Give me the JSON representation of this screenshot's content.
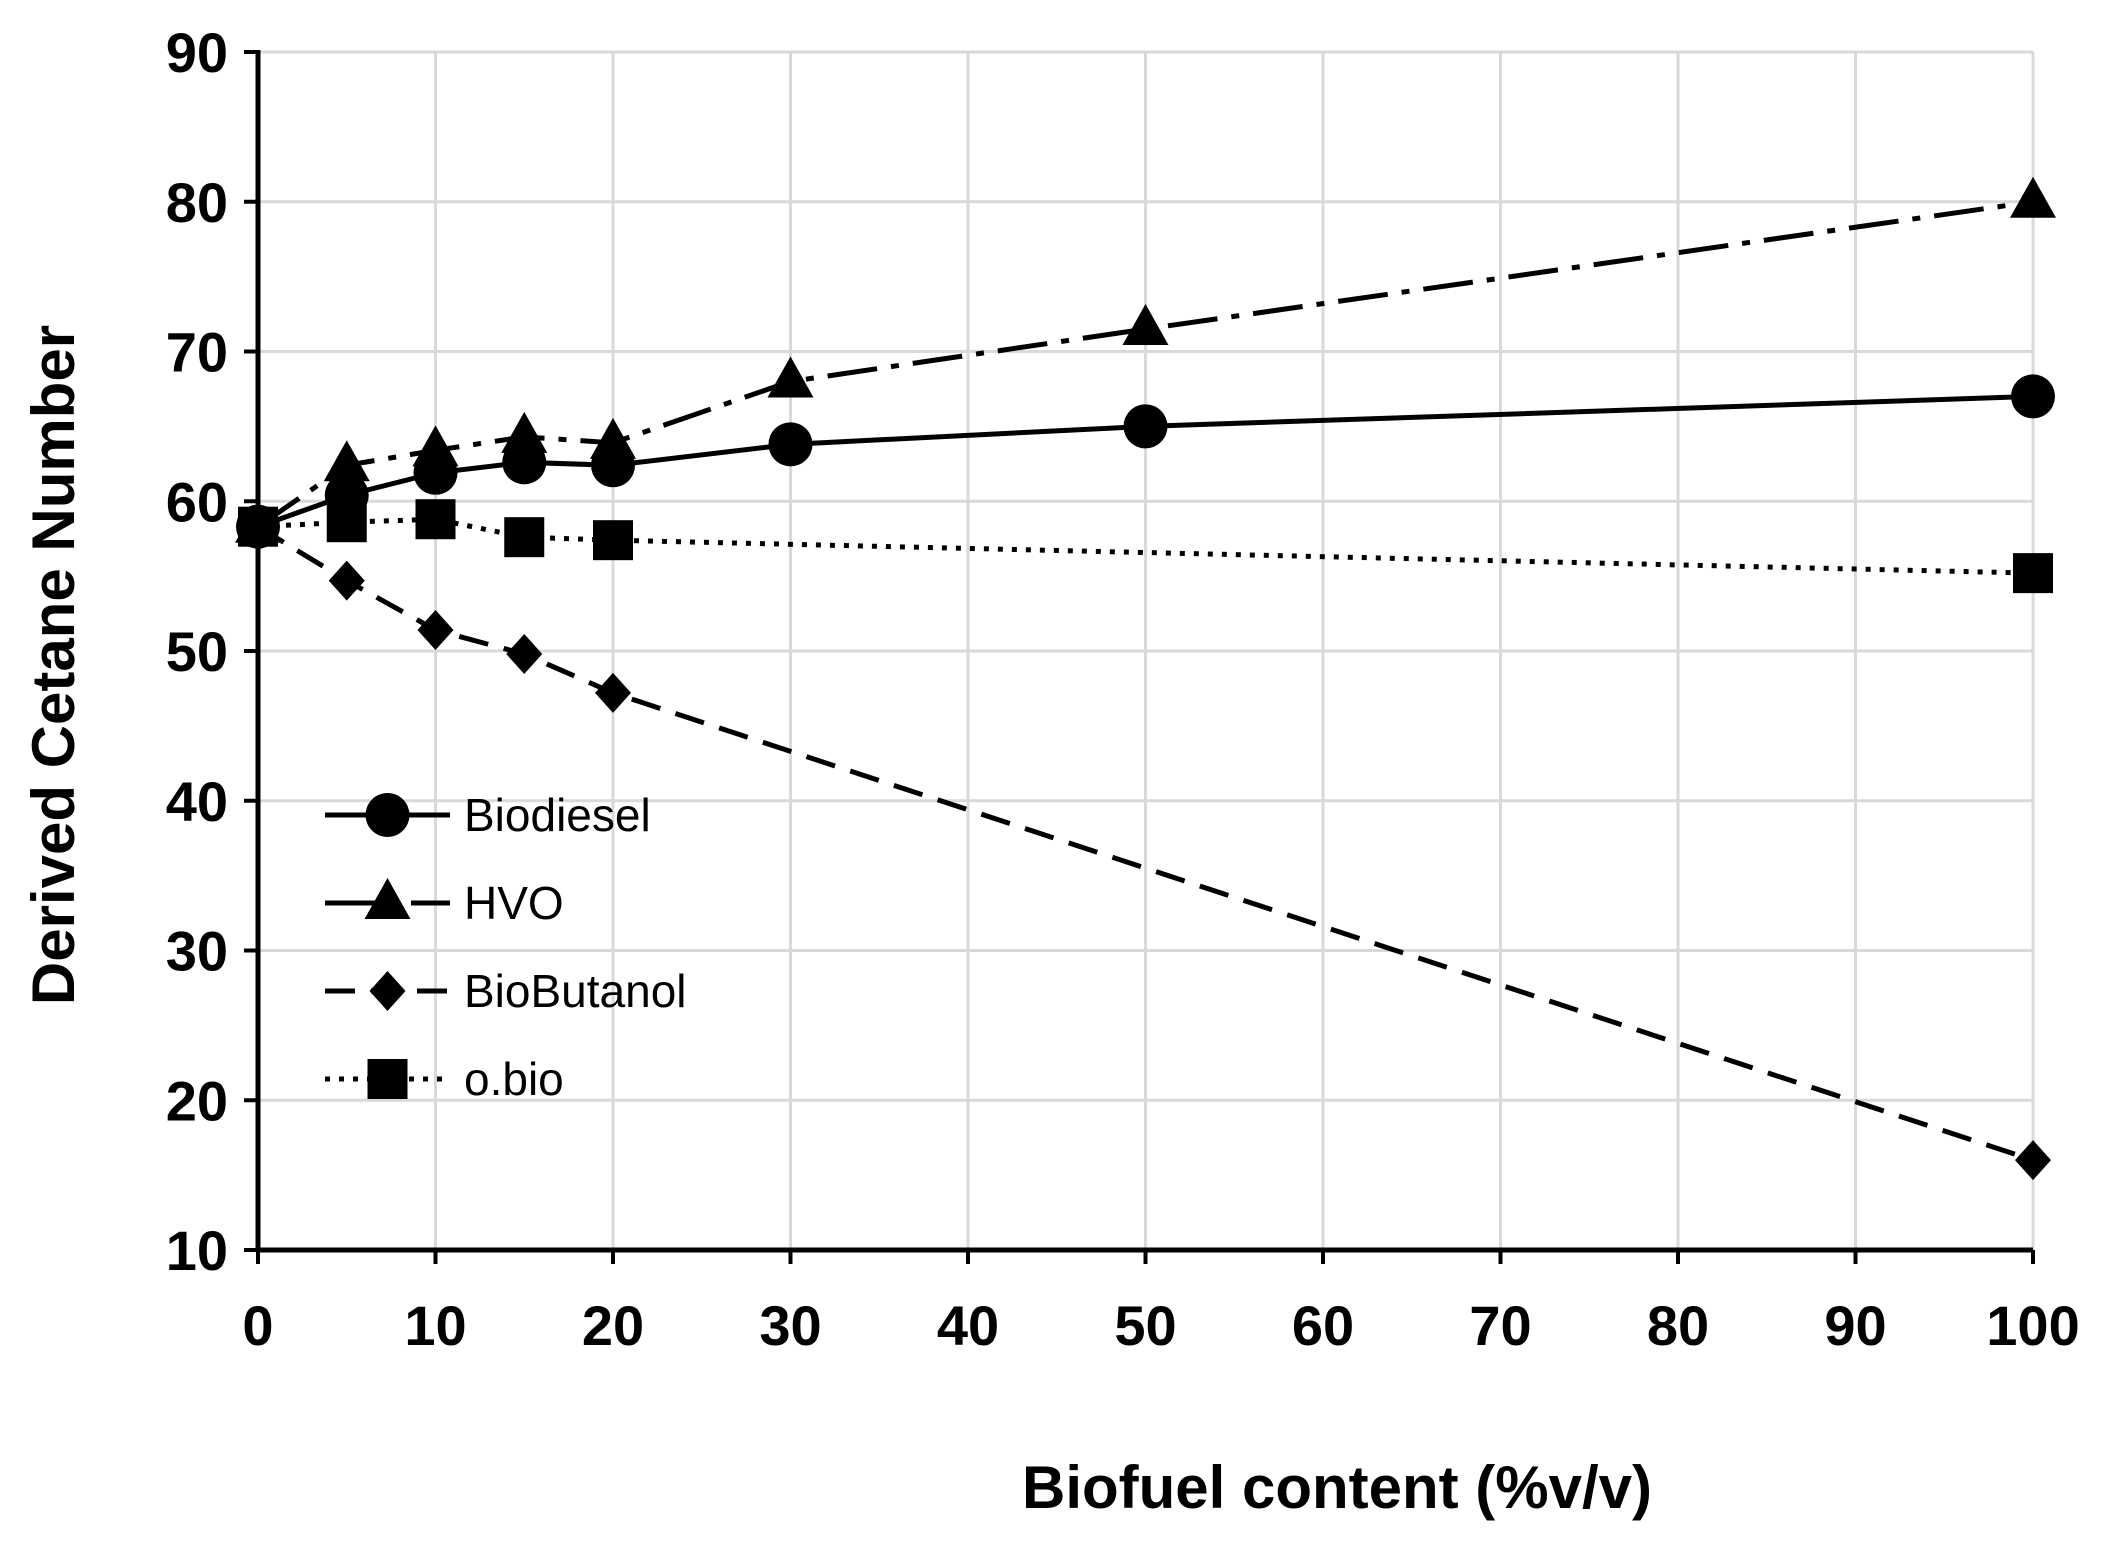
{
  "chart_data": {
    "type": "line",
    "title": "",
    "xlabel": "Biofuel content (%v/v)",
    "ylabel": "Derived Cetane Number",
    "xlim": [
      0,
      100
    ],
    "ylim": [
      10,
      90
    ],
    "xticks": [
      0,
      10,
      20,
      30,
      40,
      50,
      60,
      70,
      80,
      90,
      100
    ],
    "yticks": [
      10,
      20,
      30,
      40,
      50,
      60,
      70,
      80,
      90
    ],
    "grid": true,
    "legend_position": "left-middle",
    "series": [
      {
        "name": "Biodiesel",
        "marker": "circle",
        "line_style": "solid",
        "x": [
          0,
          5,
          10,
          15,
          20,
          30,
          50,
          100
        ],
        "y": [
          58.3,
          60.4,
          61.9,
          62.6,
          62.4,
          63.8,
          65.0,
          67.0
        ]
      },
      {
        "name": "HVO",
        "marker": "triangle",
        "line_style": "dash-dot",
        "x": [
          0,
          5,
          10,
          15,
          20,
          30,
          50,
          100
        ],
        "y": [
          58.3,
          62.4,
          63.4,
          64.3,
          63.9,
          68.0,
          71.5,
          80.0
        ]
      },
      {
        "name": "BioButanol",
        "marker": "diamond",
        "line_style": "dashed",
        "x": [
          0,
          5,
          10,
          15,
          20,
          100
        ],
        "y": [
          58.3,
          54.7,
          51.4,
          49.8,
          47.2,
          16.0
        ]
      },
      {
        "name": "o.bio",
        "marker": "square",
        "line_style": "dotted",
        "x": [
          0,
          5,
          10,
          15,
          20,
          100
        ],
        "y": [
          58.3,
          58.6,
          58.8,
          57.6,
          57.4,
          55.2
        ]
      }
    ]
  }
}
